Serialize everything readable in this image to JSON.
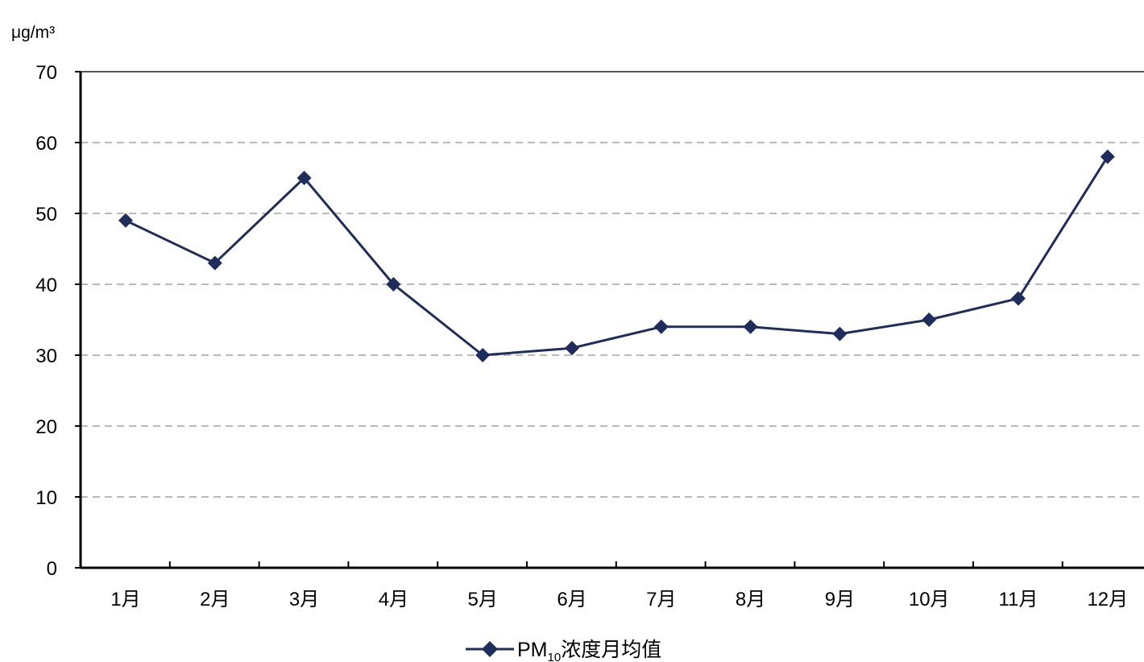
{
  "chart_data": {
    "type": "line",
    "ylabel": "μg/m³",
    "ylim": [
      0,
      70
    ],
    "yticks": [
      0,
      10,
      20,
      30,
      40,
      50,
      60,
      70
    ],
    "categories": [
      "1月",
      "2月",
      "3月",
      "4月",
      "5月",
      "6月",
      "7月",
      "8月",
      "9月",
      "10月",
      "11月",
      "12月"
    ],
    "series": [
      {
        "name": "PM10浓度月均值",
        "name_prefix": "PM",
        "name_subscript": "10",
        "name_suffix": "浓度月均值",
        "color": "#1f2d5c",
        "marker": "diamond",
        "values": [
          49,
          43,
          55,
          40,
          30,
          31,
          34,
          34,
          33,
          35,
          38,
          58
        ]
      }
    ],
    "grid": "horizontal-dashed",
    "legend_position": "bottom-center"
  }
}
